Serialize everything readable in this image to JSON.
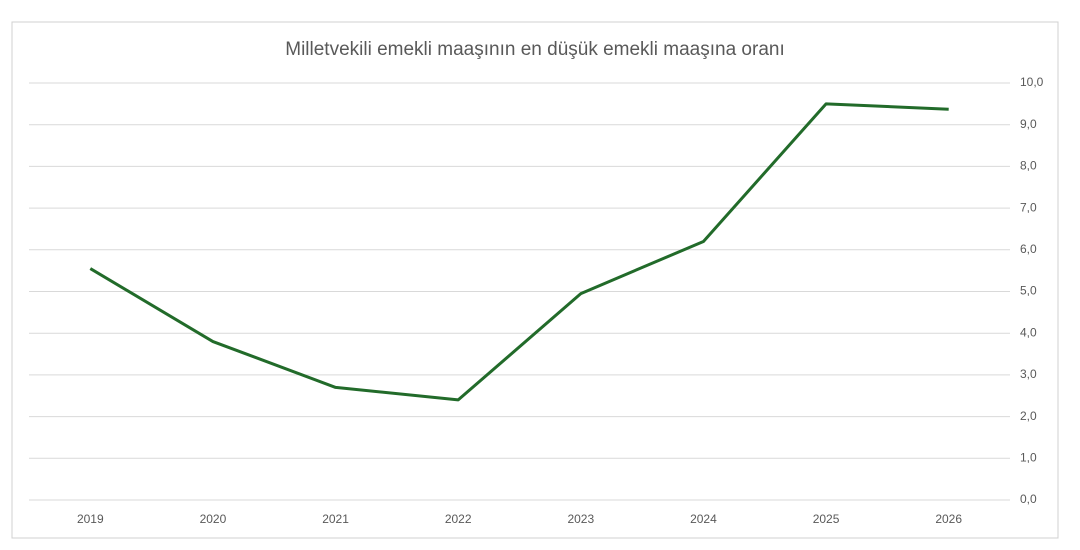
{
  "chart_data": {
    "type": "line",
    "title": "Milletvekili emekli maaşının en düşük emekli maaşına oranı",
    "categories": [
      "2019",
      "2020",
      "2021",
      "2022",
      "2023",
      "2024",
      "2025",
      "2026"
    ],
    "values": [
      5.55,
      3.8,
      2.7,
      2.4,
      4.95,
      6.2,
      9.5,
      9.37
    ],
    "color": "#226b2a",
    "ylim": [
      0,
      10
    ],
    "yticks": [
      {
        "value": 0,
        "label": "0,0"
      },
      {
        "value": 1,
        "label": "1,0"
      },
      {
        "value": 2,
        "label": "2,0"
      },
      {
        "value": 3,
        "label": "3,0"
      },
      {
        "value": 4,
        "label": "4,0"
      },
      {
        "value": 5,
        "label": "5,0"
      },
      {
        "value": 6,
        "label": "6,0"
      },
      {
        "value": 7,
        "label": "7,0"
      },
      {
        "value": 8,
        "label": "8,0"
      },
      {
        "value": 9,
        "label": "9,0"
      },
      {
        "value": 10,
        "label": "10,0"
      }
    ],
    "grid": true
  }
}
